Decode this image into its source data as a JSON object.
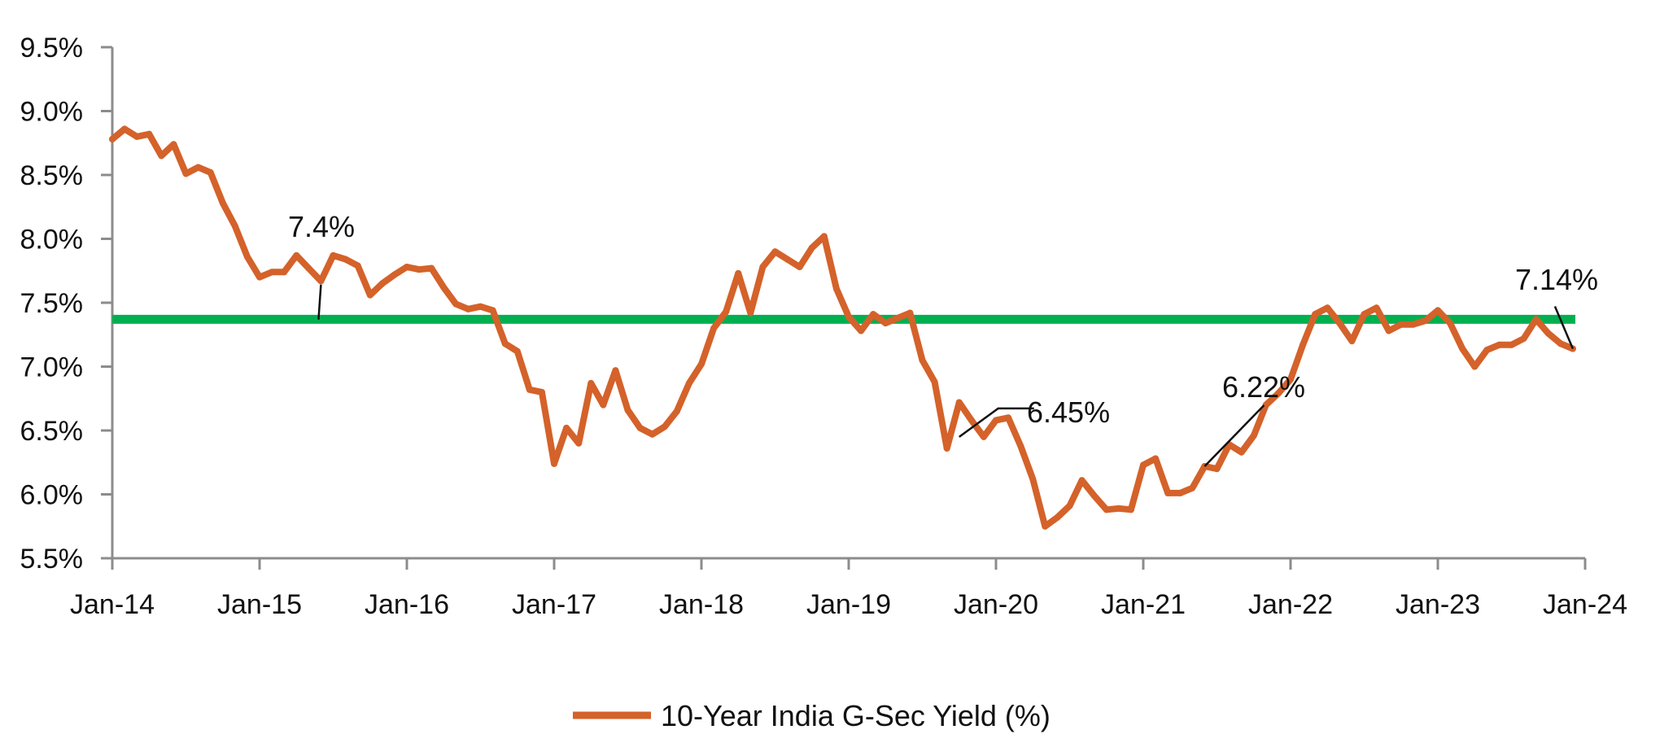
{
  "chart_data": {
    "type": "line",
    "title": "",
    "xlabel": "",
    "ylabel": "",
    "x_start": "Jan-14",
    "x_end": "Jan-24",
    "ylim": [
      5.5,
      9.5
    ],
    "y_ticks": [
      "5.5%",
      "6.0%",
      "6.5%",
      "7.0%",
      "7.5%",
      "8.0%",
      "8.5%",
      "9.0%",
      "9.5%"
    ],
    "x_ticks": [
      "Jan-14",
      "Jan-15",
      "Jan-16",
      "Jan-17",
      "Jan-18",
      "Jan-19",
      "Jan-20",
      "Jan-21",
      "Jan-22",
      "Jan-23",
      "Jan-24"
    ],
    "grid": false,
    "legend_position": "bottom-center",
    "series": [
      {
        "name": "10-Year India G-Sec Yield (%)",
        "color": "#d4622a",
        "x": [
          "Jan-14",
          "Feb-14",
          "Mar-14",
          "Apr-14",
          "May-14",
          "Jun-14",
          "Jul-14",
          "Aug-14",
          "Sep-14",
          "Oct-14",
          "Nov-14",
          "Dec-14",
          "Jan-15",
          "Feb-15",
          "Mar-15",
          "Apr-15",
          "May-15",
          "Jun-15",
          "Jul-15",
          "Aug-15",
          "Sep-15",
          "Oct-15",
          "Nov-15",
          "Dec-15",
          "Jan-16",
          "Feb-16",
          "Mar-16",
          "Apr-16",
          "May-16",
          "Jun-16",
          "Jul-16",
          "Aug-16",
          "Sep-16",
          "Oct-16",
          "Nov-16",
          "Dec-16",
          "Jan-17",
          "Feb-17",
          "Mar-17",
          "Apr-17",
          "May-17",
          "Jun-17",
          "Jul-17",
          "Aug-17",
          "Sep-17",
          "Oct-17",
          "Nov-17",
          "Dec-17",
          "Jan-18",
          "Feb-18",
          "Mar-18",
          "Apr-18",
          "May-18",
          "Jun-18",
          "Jul-18",
          "Aug-18",
          "Sep-18",
          "Oct-18",
          "Nov-18",
          "Dec-18",
          "Jan-19",
          "Feb-19",
          "Mar-19",
          "Apr-19",
          "May-19",
          "Jun-19",
          "Jul-19",
          "Aug-19",
          "Sep-19",
          "Oct-19",
          "Nov-19",
          "Dec-19",
          "Jan-20",
          "Feb-20",
          "Mar-20",
          "Apr-20",
          "May-20",
          "Jun-20",
          "Jul-20",
          "Aug-20",
          "Sep-20",
          "Oct-20",
          "Nov-20",
          "Dec-20",
          "Jan-21",
          "Feb-21",
          "Mar-21",
          "Apr-21",
          "May-21",
          "Jun-21",
          "Jul-21",
          "Aug-21",
          "Sep-21",
          "Oct-21",
          "Nov-21",
          "Dec-21",
          "Jan-22",
          "Feb-22",
          "Mar-22",
          "Apr-22",
          "May-22",
          "Jun-22",
          "Jul-22",
          "Aug-22",
          "Sep-22",
          "Oct-22",
          "Nov-22",
          "Dec-22",
          "Jan-23",
          "Feb-23",
          "Mar-23",
          "Apr-23",
          "May-23",
          "Jun-23",
          "Jul-23",
          "Aug-23",
          "Sep-23",
          "Oct-23",
          "Nov-23",
          "Dec-23"
        ],
        "values": [
          8.78,
          8.86,
          8.8,
          8.82,
          8.65,
          8.74,
          8.51,
          8.56,
          8.52,
          8.28,
          8.1,
          7.86,
          7.7,
          7.74,
          7.74,
          7.87,
          7.77,
          7.67,
          7.87,
          7.84,
          7.79,
          7.56,
          7.65,
          7.72,
          7.78,
          7.76,
          7.77,
          7.62,
          7.49,
          7.45,
          7.47,
          7.44,
          7.18,
          7.12,
          6.82,
          6.8,
          6.24,
          6.52,
          6.4,
          6.87,
          6.7,
          6.97,
          6.66,
          6.52,
          6.47,
          6.53,
          6.65,
          6.87,
          7.02,
          7.3,
          7.43,
          7.73,
          7.42,
          7.78,
          7.9,
          7.84,
          7.78,
          7.93,
          8.02,
          7.61,
          7.39,
          7.28,
          7.41,
          7.34,
          7.38,
          7.42,
          7.05,
          6.88,
          6.36,
          6.72,
          6.58,
          6.45,
          6.58,
          6.6,
          6.38,
          6.12,
          5.75,
          5.82,
          5.91,
          6.11,
          5.99,
          5.88,
          5.89,
          5.88,
          6.23,
          6.28,
          6.01,
          6.01,
          6.05,
          6.22,
          6.2,
          6.39,
          6.33,
          6.46,
          6.7,
          6.79,
          6.9,
          7.17,
          7.41,
          7.46,
          7.34,
          7.2,
          7.41,
          7.46,
          7.28,
          7.33,
          7.33,
          7.36,
          7.44,
          7.34,
          7.14,
          7.0,
          7.13,
          7.17,
          7.17,
          7.22,
          7.37,
          7.26,
          7.18,
          7.14
        ]
      },
      {
        "name": "",
        "color": "#00b050",
        "reference_value": 7.37
      }
    ],
    "annotations": [
      {
        "text": "7.4%",
        "x": "Jun-15",
        "y": 7.4
      },
      {
        "text": "6.45%",
        "x": "Oct-19",
        "y": 6.45
      },
      {
        "text": "6.22%",
        "x": "Jun-21",
        "y": 6.22
      },
      {
        "text": "7.14%",
        "x": "Dec-23",
        "y": 7.14
      }
    ]
  }
}
